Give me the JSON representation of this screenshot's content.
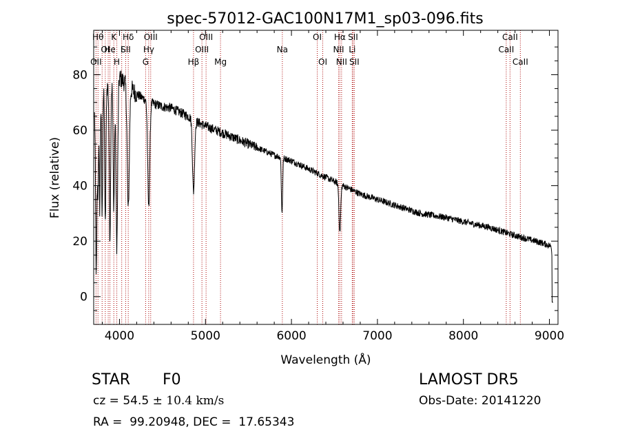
{
  "chart_data": {
    "type": "line",
    "title": "spec-57012-GAC100N17M1_sp03-096.fits",
    "xlabel": "Wavelength (Å)",
    "ylabel": "Flux (relative)",
    "xlim": [
      3700,
      9100
    ],
    "ylim": [
      -10,
      96
    ],
    "x_ticks": [
      4000,
      5000,
      6000,
      7000,
      8000,
      9000
    ],
    "y_ticks": [
      0,
      20,
      40,
      60,
      80
    ],
    "grid": false,
    "line_color": "#000000",
    "marker_color": "#aa0000",
    "continuum": [
      [
        3720,
        68
      ],
      [
        3800,
        74
      ],
      [
        3900,
        77
      ],
      [
        4000,
        79
      ],
      [
        4100,
        76
      ],
      [
        4200,
        73
      ],
      [
        4300,
        71
      ],
      [
        4400,
        69.5
      ],
      [
        4500,
        68.5
      ],
      [
        4600,
        68
      ],
      [
        4700,
        66.5
      ],
      [
        4800,
        65
      ],
      [
        4900,
        63
      ],
      [
        5000,
        61.5
      ],
      [
        5200,
        59
      ],
      [
        5500,
        55
      ],
      [
        5800,
        51
      ],
      [
        6000,
        49
      ],
      [
        6200,
        46
      ],
      [
        6400,
        43
      ],
      [
        6600,
        40
      ],
      [
        6800,
        37
      ],
      [
        7000,
        35
      ],
      [
        7200,
        33
      ],
      [
        7500,
        30
      ],
      [
        7800,
        28.5
      ],
      [
        8000,
        27
      ],
      [
        8300,
        25
      ],
      [
        8600,
        22
      ],
      [
        8900,
        19.5
      ],
      [
        9040,
        18
      ]
    ],
    "absorption_features": [
      {
        "x": 3730,
        "depth": 60,
        "width": 8
      },
      {
        "x": 3750,
        "depth": 30,
        "width": 6
      },
      {
        "x": 3770,
        "depth": 40,
        "width": 6
      },
      {
        "x": 3798,
        "depth": 45,
        "width": 6
      },
      {
        "x": 3835,
        "depth": 50,
        "width": 7
      },
      {
        "x": 3889,
        "depth": 55,
        "width": 8
      },
      {
        "x": 3934,
        "depth": 45,
        "width": 8
      },
      {
        "x": 3969,
        "depth": 60,
        "width": 10
      },
      {
        "x": 4102,
        "depth": 45,
        "width": 12
      },
      {
        "x": 4340,
        "depth": 38,
        "width": 12
      },
      {
        "x": 4861,
        "depth": 26,
        "width": 12
      },
      {
        "x": 5890,
        "depth": 20,
        "width": 7
      },
      {
        "x": 6563,
        "depth": 17,
        "width": 10
      },
      {
        "x": 9040,
        "depth": 18,
        "width": 6
      }
    ],
    "spectral_lines": [
      {
        "x": 3727,
        "row": 3,
        "text": "OII"
      },
      {
        "x": 3750,
        "row": 1,
        "text": "Hθ"
      },
      {
        "x": 3798,
        "row": 1,
        "text": ""
      },
      {
        "x": 3835,
        "row": 2,
        "text": "OI"
      },
      {
        "x": 3869,
        "row": 3,
        "text": ""
      },
      {
        "x": 3889,
        "row": 2,
        "text": "He"
      },
      {
        "x": 3934,
        "row": 1,
        "text": "K"
      },
      {
        "x": 3969,
        "row": 3,
        "text": "H"
      },
      {
        "x": 4026,
        "row": 2,
        "text": "I"
      },
      {
        "x": 4072,
        "row": 2,
        "text": "SII"
      },
      {
        "x": 4102,
        "row": 1,
        "text": "Hδ"
      },
      {
        "x": 4304,
        "row": 3,
        "text": "G"
      },
      {
        "x": 4340,
        "row": 2,
        "text": "Hγ"
      },
      {
        "x": 4363,
        "row": 1,
        "text": "OIII"
      },
      {
        "x": 4861,
        "row": 3,
        "text": "Hβ"
      },
      {
        "x": 4959,
        "row": 2,
        "text": "OIII"
      },
      {
        "x": 5007,
        "row": 1,
        "text": "OIII"
      },
      {
        "x": 5175,
        "row": 3,
        "text": "Mg"
      },
      {
        "x": 5894,
        "row": 2,
        "text": "Na"
      },
      {
        "x": 6300,
        "row": 1,
        "text": "OI"
      },
      {
        "x": 6364,
        "row": 3,
        "text": "OI"
      },
      {
        "x": 6548,
        "row": 2,
        "text": "NII"
      },
      {
        "x": 6563,
        "row": 1,
        "text": "Hα"
      },
      {
        "x": 6583,
        "row": 3,
        "text": "NII"
      },
      {
        "x": 6707,
        "row": 2,
        "text": "Li"
      },
      {
        "x": 6716,
        "row": 1,
        "text": "SII"
      },
      {
        "x": 6731,
        "row": 3,
        "text": "SII"
      },
      {
        "x": 8498,
        "row": 2,
        "text": "CaII"
      },
      {
        "x": 8542,
        "row": 1,
        "text": "CaII"
      },
      {
        "x": 8662,
        "row": 3,
        "text": "CaII"
      }
    ]
  },
  "info": {
    "object_class": "STAR",
    "object_subclass": "F0",
    "survey": "LAMOST DR5",
    "cz_label": "cz = ",
    "cz_value": "54.5",
    "cz_pm": " ± ",
    "cz_error": "10.4 km/s",
    "obs_date": "Obs-Date: 20141220",
    "radec": "RA =  99.20948, DEC =  17.65343"
  }
}
